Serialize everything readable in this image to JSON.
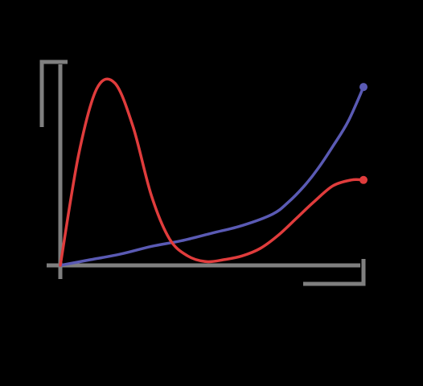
{
  "colors": {
    "background": "#000000",
    "axis": "#7f7f7f",
    "red_curve": "#e03c3c",
    "blue_curve": "#5a5ab4"
  },
  "chart_data": {
    "type": "line",
    "title": "",
    "xlabel": "",
    "ylabel": "",
    "xlim": [
      0,
      10
    ],
    "ylim": [
      0,
      10
    ],
    "grid": false,
    "legend": "none",
    "axis_style": "arrow-heads on x and y",
    "series": [
      {
        "color": "#e03c3c",
        "end_marker": true,
        "x": [
          0,
          0.6,
          1.2,
          1.8,
          2.4,
          3.0,
          3.6,
          4.2,
          4.8,
          5.4,
          6.0,
          6.6,
          7.2,
          7.8,
          8.4,
          9.0,
          9.6,
          10.0
        ],
        "y": [
          0,
          5.8,
          9.3,
          9.6,
          7.3,
          3.7,
          1.4,
          0.5,
          0.2,
          0.3,
          0.5,
          0.9,
          1.6,
          2.5,
          3.4,
          4.2,
          4.5,
          4.5
        ]
      },
      {
        "color": "#5a5ab4",
        "end_marker": true,
        "x": [
          0,
          1,
          2,
          3,
          4,
          5,
          6,
          7,
          7.5,
          8,
          8.5,
          9,
          9.5,
          10
        ],
        "y": [
          0,
          0.3,
          0.6,
          1.0,
          1.3,
          1.7,
          2.1,
          2.7,
          3.3,
          4.1,
          5.1,
          6.3,
          7.6,
          9.4
        ]
      }
    ]
  }
}
